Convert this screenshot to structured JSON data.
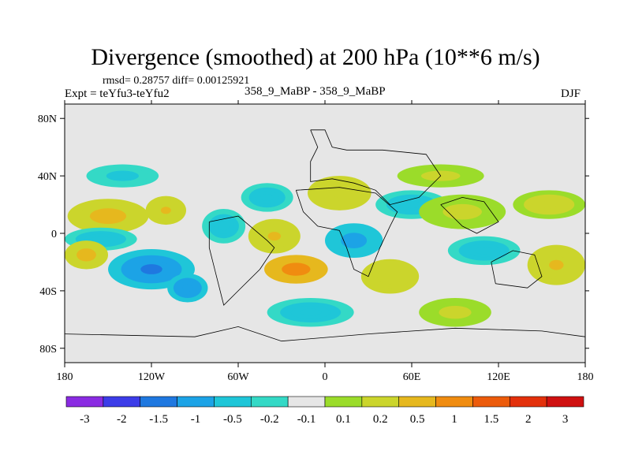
{
  "title": "Divergence (smoothed) at 200 hPa (10**6 m/s)",
  "stats_text": "rmsd= 0.28757 diff= 0.00125921",
  "experiment_text": "Expt = teYfu3-teYfu2",
  "center_label": "358_9_MaBP - 358_9_MaBP",
  "season": "DJF",
  "chart_data": {
    "type": "heatmap",
    "title": "Divergence (smoothed) at 200 hPa (10**6 m/s)",
    "xlabel": "",
    "ylabel": "",
    "x_range": [
      -180,
      180
    ],
    "y_range": [
      -90,
      90
    ],
    "x_ticks": [
      {
        "value": -180,
        "label": "180"
      },
      {
        "value": -120,
        "label": "120W"
      },
      {
        "value": -60,
        "label": "60W"
      },
      {
        "value": 0,
        "label": "0"
      },
      {
        "value": 60,
        "label": "60E"
      },
      {
        "value": 120,
        "label": "120E"
      },
      {
        "value": 180,
        "label": "180"
      }
    ],
    "y_ticks": [
      {
        "value": 80,
        "label": "80N"
      },
      {
        "value": 40,
        "label": "40N"
      },
      {
        "value": 0,
        "label": "0"
      },
      {
        "value": -40,
        "label": "40S"
      },
      {
        "value": -80,
        "label": "80S"
      }
    ],
    "colorbar": {
      "levels": [
        "-3",
        "-2",
        "-1.5",
        "-1",
        "-0.5",
        "-0.2",
        "-0.1",
        "0.1",
        "0.2",
        "0.5",
        "1",
        "1.5",
        "2",
        "3"
      ],
      "colors": [
        "#8a2be2",
        "#3c3ce8",
        "#1f78e0",
        "#1ca3e6",
        "#1fc6d8",
        "#34d9c6",
        "#e6e6e6",
        "#9bdc2a",
        "#cbd52c",
        "#e6b81e",
        "#f08c10",
        "#ec5b0b",
        "#e3300b",
        "#cf1010"
      ]
    },
    "field_blobs": [
      {
        "lon": -150,
        "lat": 12,
        "rlon": 28,
        "rlat": 12,
        "value": 0.8
      },
      {
        "lon": -110,
        "lat": 16,
        "rlon": 14,
        "rlat": 10,
        "value": 0.6
      },
      {
        "lon": -155,
        "lat": -4,
        "rlon": 25,
        "rlat": 8,
        "value": -0.5
      },
      {
        "lon": -120,
        "lat": -25,
        "rlon": 30,
        "rlat": 14,
        "value": -1.2
      },
      {
        "lon": -95,
        "lat": -38,
        "rlon": 14,
        "rlat": 10,
        "value": -1.1
      },
      {
        "lon": -165,
        "lat": -15,
        "rlon": 15,
        "rlat": 10,
        "value": 0.8
      },
      {
        "lon": -70,
        "lat": 5,
        "rlon": 15,
        "rlat": 12,
        "value": -0.5
      },
      {
        "lon": -40,
        "lat": 25,
        "rlon": 18,
        "rlat": 10,
        "value": -0.4
      },
      {
        "lon": -35,
        "lat": -2,
        "rlon": 18,
        "rlat": 12,
        "value": 0.6
      },
      {
        "lon": -20,
        "lat": -25,
        "rlon": 22,
        "rlat": 10,
        "value": 1.4
      },
      {
        "lon": 20,
        "lat": -5,
        "rlon": 20,
        "rlat": 12,
        "value": -0.8
      },
      {
        "lon": 10,
        "lat": 28,
        "rlon": 22,
        "rlat": 12,
        "value": 0.5
      },
      {
        "lon": 60,
        "lat": 20,
        "rlon": 25,
        "rlat": 10,
        "value": -0.4
      },
      {
        "lon": 45,
        "lat": -30,
        "rlon": 20,
        "rlat": 12,
        "value": 0.5
      },
      {
        "lon": 95,
        "lat": 15,
        "rlon": 30,
        "rlat": 12,
        "value": 0.3
      },
      {
        "lon": 110,
        "lat": -12,
        "rlon": 25,
        "rlat": 10,
        "value": -0.5
      },
      {
        "lon": 155,
        "lat": 20,
        "rlon": 25,
        "rlat": 10,
        "value": 0.4
      },
      {
        "lon": 160,
        "lat": -22,
        "rlon": 20,
        "rlat": 14,
        "value": 0.6
      },
      {
        "lon": -10,
        "lat": -55,
        "rlon": 30,
        "rlat": 10,
        "value": -0.4
      },
      {
        "lon": 90,
        "lat": -55,
        "rlon": 25,
        "rlat": 10,
        "value": 0.3
      },
      {
        "lon": -140,
        "lat": 40,
        "rlon": 25,
        "rlat": 8,
        "value": -0.3
      },
      {
        "lon": 80,
        "lat": 40,
        "rlon": 30,
        "rlat": 8,
        "value": 0.3
      }
    ]
  }
}
